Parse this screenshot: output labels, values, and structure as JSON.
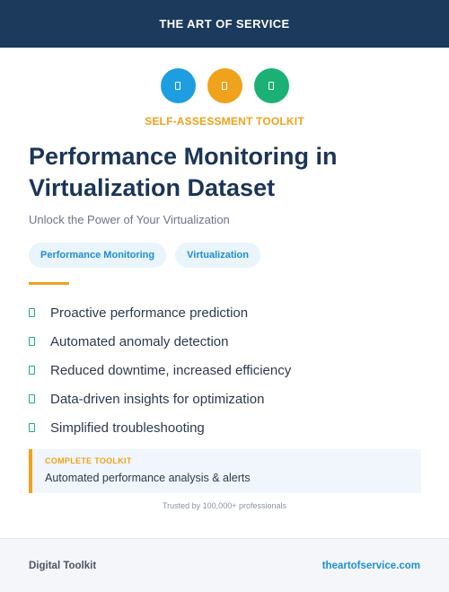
{
  "header": {
    "brand": "THE ART OF SERVICE",
    "background": "#1b3a5c"
  },
  "icons": [
    {
      "name": "doc-icon",
      "color": "#1e9ee0"
    },
    {
      "name": "doc-icon",
      "color": "#efa21b"
    },
    {
      "name": "doc-icon",
      "color": "#1ab076"
    }
  ],
  "eyebrow": "SELF-ASSESSMENT TOOLKIT",
  "title": "Performance Monitoring in Virtualization Dataset",
  "subtitle": "Unlock the Power of Your Virtualization",
  "tags": [
    "Performance Monitoring",
    "Virtualization"
  ],
  "features": [
    "Proactive performance prediction",
    "Automated anomaly detection",
    "Reduced downtime, increased efficiency",
    "Data-driven insights for optimization",
    "Simplified troubleshooting"
  ],
  "callout": {
    "label": "COMPLETE TOOLKIT",
    "text": "Automated performance analysis & alerts"
  },
  "trusted": "Trusted by 100,000+ professionals",
  "footer": {
    "left": "Digital Toolkit",
    "right": "theartofservice.com"
  },
  "colors": {
    "accent": "#efa21b",
    "link": "#1d8ed1",
    "check": "#1ab076"
  }
}
